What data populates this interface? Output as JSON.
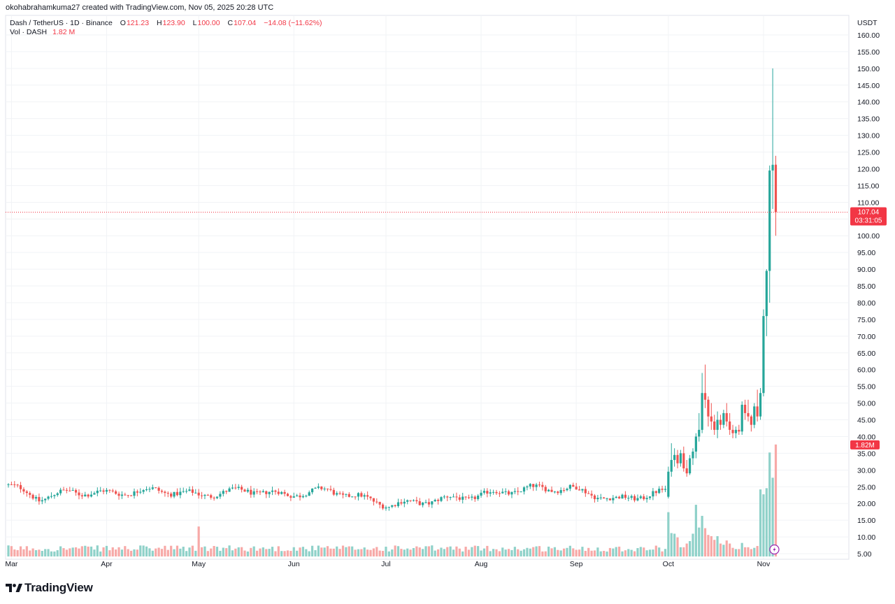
{
  "header": {
    "text": "okohabrahamkuma27 created with TradingView.com, Nov 05, 2025 20:28 UTC"
  },
  "legend": {
    "symbol": "Dash / TetherUS · 1D · Binance",
    "o_label": "O",
    "o_value": "121.23",
    "h_label": "H",
    "h_value": "123.90",
    "l_label": "L",
    "l_value": "100.00",
    "c_label": "C",
    "c_value": "107.04",
    "change": "−14.08 (−11.62%)",
    "vol_label": "Vol · DASH",
    "vol_value": "1.82 M"
  },
  "price_badge": {
    "price": "107.04",
    "countdown": "03:31:05"
  },
  "volume_badge": {
    "value": "1.82M"
  },
  "footer": {
    "brand": "TradingView"
  },
  "colors": {
    "up": "#26a69a",
    "down": "#ef5350",
    "vol_up": "#8fd1c9",
    "vol_down": "#f7a9a7",
    "badge": "#f23645"
  },
  "chart_data": {
    "type": "candlestick",
    "quote_currency": "USDT",
    "y_ticks": [
      "160.00",
      "155.00",
      "150.00",
      "145.00",
      "140.00",
      "135.00",
      "130.00",
      "125.00",
      "120.00",
      "115.00",
      "110.00",
      "105.00",
      "100.00",
      "95.00",
      "90.00",
      "85.00",
      "80.00",
      "75.00",
      "70.00",
      "65.00",
      "60.00",
      "55.00",
      "50.00",
      "45.00",
      "40.00",
      "35.00",
      "30.00",
      "25.00",
      "20.00",
      "15.00",
      "10.00",
      "5.00"
    ],
    "ylim": [
      5,
      160
    ],
    "x_ticks": [
      "Mar",
      "Apr",
      "May",
      "Jun",
      "Jul",
      "Aug",
      "Sep",
      "Oct",
      "Nov"
    ],
    "current_price": 107.04,
    "volume_unit": "M",
    "candles": [
      {
        "date": "2025-10-01",
        "o": 22.0,
        "h": 31.0,
        "l": 21.5,
        "c": 29.5,
        "v": 0.72
      },
      {
        "date": "2025-10-02",
        "o": 29.5,
        "h": 38.0,
        "l": 28.0,
        "c": 33.0,
        "v": 0.38
      },
      {
        "date": "2025-10-03",
        "o": 33.0,
        "h": 36.5,
        "l": 31.0,
        "c": 34.5,
        "v": 0.37
      },
      {
        "date": "2025-10-04",
        "o": 34.5,
        "h": 36.0,
        "l": 30.5,
        "c": 32.0,
        "v": 0.31
      },
      {
        "date": "2025-10-05",
        "o": 32.0,
        "h": 36.0,
        "l": 31.0,
        "c": 35.0,
        "v": 0.15
      },
      {
        "date": "2025-10-06",
        "o": 35.0,
        "h": 37.0,
        "l": 29.5,
        "c": 30.5,
        "v": 0.15
      },
      {
        "date": "2025-10-07",
        "o": 30.5,
        "h": 33.0,
        "l": 28.0,
        "c": 29.0,
        "v": 0.21
      },
      {
        "date": "2025-10-08",
        "o": 29.0,
        "h": 34.5,
        "l": 28.5,
        "c": 33.5,
        "v": 0.25
      },
      {
        "date": "2025-10-09",
        "o": 33.5,
        "h": 36.5,
        "l": 31.5,
        "c": 35.5,
        "v": 0.37
      },
      {
        "date": "2025-10-10",
        "o": 35.5,
        "h": 41.0,
        "l": 33.5,
        "c": 40.0,
        "v": 0.84
      },
      {
        "date": "2025-10-11",
        "o": 40.0,
        "h": 47.0,
        "l": 38.5,
        "c": 42.0,
        "v": 0.47
      },
      {
        "date": "2025-10-12",
        "o": 42.0,
        "h": 59.0,
        "l": 41.0,
        "c": 53.0,
        "v": 0.66
      },
      {
        "date": "2025-10-13",
        "o": 53.0,
        "h": 61.5,
        "l": 48.5,
        "c": 51.0,
        "v": 0.46
      },
      {
        "date": "2025-10-14",
        "o": 51.0,
        "h": 52.0,
        "l": 43.0,
        "c": 46.0,
        "v": 0.35
      },
      {
        "date": "2025-10-15",
        "o": 46.0,
        "h": 50.0,
        "l": 42.0,
        "c": 44.5,
        "v": 0.33
      },
      {
        "date": "2025-10-16",
        "o": 44.5,
        "h": 46.5,
        "l": 40.5,
        "c": 42.0,
        "v": 0.27
      },
      {
        "date": "2025-10-17",
        "o": 42.0,
        "h": 47.5,
        "l": 39.5,
        "c": 45.0,
        "v": 0.33
      },
      {
        "date": "2025-10-18",
        "o": 45.0,
        "h": 46.5,
        "l": 42.0,
        "c": 43.5,
        "v": 0.21
      },
      {
        "date": "2025-10-19",
        "o": 43.5,
        "h": 48.0,
        "l": 42.5,
        "c": 47.0,
        "v": 0.19
      },
      {
        "date": "2025-10-20",
        "o": 47.0,
        "h": 50.0,
        "l": 43.0,
        "c": 44.5,
        "v": 0.26
      },
      {
        "date": "2025-10-21",
        "o": 44.5,
        "h": 47.0,
        "l": 40.5,
        "c": 42.0,
        "v": 0.21
      },
      {
        "date": "2025-10-22",
        "o": 42.0,
        "h": 43.5,
        "l": 39.5,
        "c": 41.0,
        "v": 0.14
      },
      {
        "date": "2025-10-23",
        "o": 41.0,
        "h": 43.0,
        "l": 39.5,
        "c": 42.0,
        "v": 0.12
      },
      {
        "date": "2025-10-24",
        "o": 42.0,
        "h": 43.5,
        "l": 40.5,
        "c": 41.5,
        "v": 0.12
      },
      {
        "date": "2025-10-25",
        "o": 41.5,
        "h": 50.5,
        "l": 40.5,
        "c": 49.5,
        "v": 0.22
      },
      {
        "date": "2025-10-26",
        "o": 49.5,
        "h": 51.0,
        "l": 45.0,
        "c": 47.0,
        "v": 0.15
      },
      {
        "date": "2025-10-27",
        "o": 47.0,
        "h": 51.0,
        "l": 44.5,
        "c": 46.0,
        "v": 0.15
      },
      {
        "date": "2025-10-28",
        "o": 46.0,
        "h": 46.5,
        "l": 41.5,
        "c": 43.5,
        "v": 0.12
      },
      {
        "date": "2025-10-29",
        "o": 43.5,
        "h": 50.0,
        "l": 42.5,
        "c": 49.0,
        "v": 0.14
      },
      {
        "date": "2025-10-30",
        "o": 49.0,
        "h": 54.0,
        "l": 44.5,
        "c": 46.0,
        "v": 0.17
      },
      {
        "date": "2025-10-31",
        "o": 46.0,
        "h": 54.5,
        "l": 45.0,
        "c": 53.0,
        "v": 1.09
      },
      {
        "date": "2025-11-01",
        "o": 53.0,
        "h": 78.0,
        "l": 52.0,
        "c": 76.0,
        "v": 1.01
      },
      {
        "date": "2025-11-02",
        "o": 76.0,
        "h": 90.0,
        "l": 70.0,
        "c": 89.5,
        "v": 1.11
      },
      {
        "date": "2025-11-03",
        "o": 89.5,
        "h": 121.0,
        "l": 80.0,
        "c": 119.5,
        "v": 1.69
      },
      {
        "date": "2025-11-04",
        "o": 119.5,
        "h": 150.0,
        "l": 108.0,
        "c": 121.2,
        "v": 1.28
      },
      {
        "date": "2025-11-05",
        "o": 121.23,
        "h": 123.9,
        "l": 100.0,
        "c": 107.04,
        "v": 1.82
      }
    ]
  }
}
